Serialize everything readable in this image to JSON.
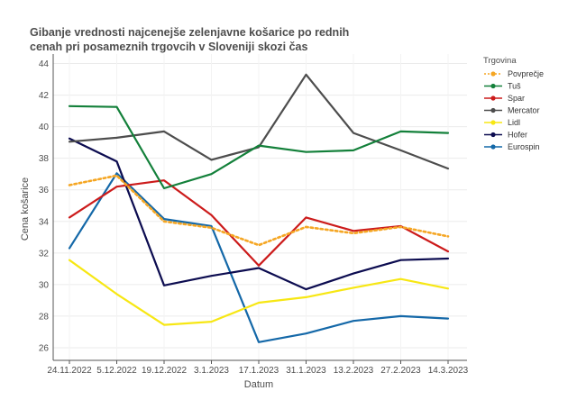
{
  "chart_data": {
    "type": "line",
    "title_lines": [
      "Gibanje vrednosti najcenejše zelenjavne košarice  po rednih",
      " cenah pri posameznih trgovcih v Sloveniji skozi čas"
    ],
    "xlabel": "Datum",
    "ylabel": "Cena košarice",
    "categories": [
      "24.11.2022",
      "5.12.2022",
      "19.12.2022",
      "3.1.2023",
      "17.1.2023",
      "31.1.2023",
      "13.2.2023",
      "27.2.2023",
      "14.3.2023"
    ],
    "y_ticks": [
      26,
      28,
      30,
      32,
      34,
      36,
      38,
      40,
      42,
      44
    ],
    "ylim": [
      25.2,
      44.6
    ],
    "grid": true,
    "legend": {
      "title": "Trgovina",
      "position": "right"
    },
    "series": [
      {
        "name": "Povprečje",
        "color": "#f5a623",
        "dashed": true,
        "values": [
          36.3,
          36.9,
          34.0,
          33.6,
          32.5,
          33.65,
          33.25,
          33.65,
          33.05
        ]
      },
      {
        "name": "Tuš",
        "color": "#13803a",
        "dashed": false,
        "values": [
          41.3,
          41.25,
          36.1,
          37.0,
          38.8,
          38.4,
          38.5,
          39.7,
          39.6
        ]
      },
      {
        "name": "Spar",
        "color": "#cc1b1b",
        "dashed": false,
        "values": [
          34.25,
          36.2,
          36.6,
          34.4,
          31.2,
          34.25,
          33.4,
          33.7,
          32.1
        ]
      },
      {
        "name": "Mercator",
        "color": "#4d4d4d",
        "dashed": false,
        "values": [
          39.05,
          39.3,
          39.7,
          37.9,
          38.7,
          43.3,
          39.6,
          38.5,
          37.35
        ]
      },
      {
        "name": "Lidl",
        "color": "#f7e713",
        "dashed": false,
        "values": [
          31.55,
          29.4,
          27.45,
          27.65,
          28.85,
          29.2,
          29.8,
          30.35,
          29.75
        ]
      },
      {
        "name": "Hofer",
        "color": "#0c0c50",
        "dashed": false,
        "values": [
          39.25,
          37.8,
          29.95,
          30.55,
          31.05,
          29.7,
          30.7,
          31.55,
          31.65
        ]
      },
      {
        "name": "Eurospin",
        "color": "#1468a8",
        "dashed": false,
        "values": [
          32.3,
          37.05,
          34.15,
          33.7,
          26.35,
          26.9,
          27.7,
          28.0,
          27.85
        ]
      }
    ]
  }
}
